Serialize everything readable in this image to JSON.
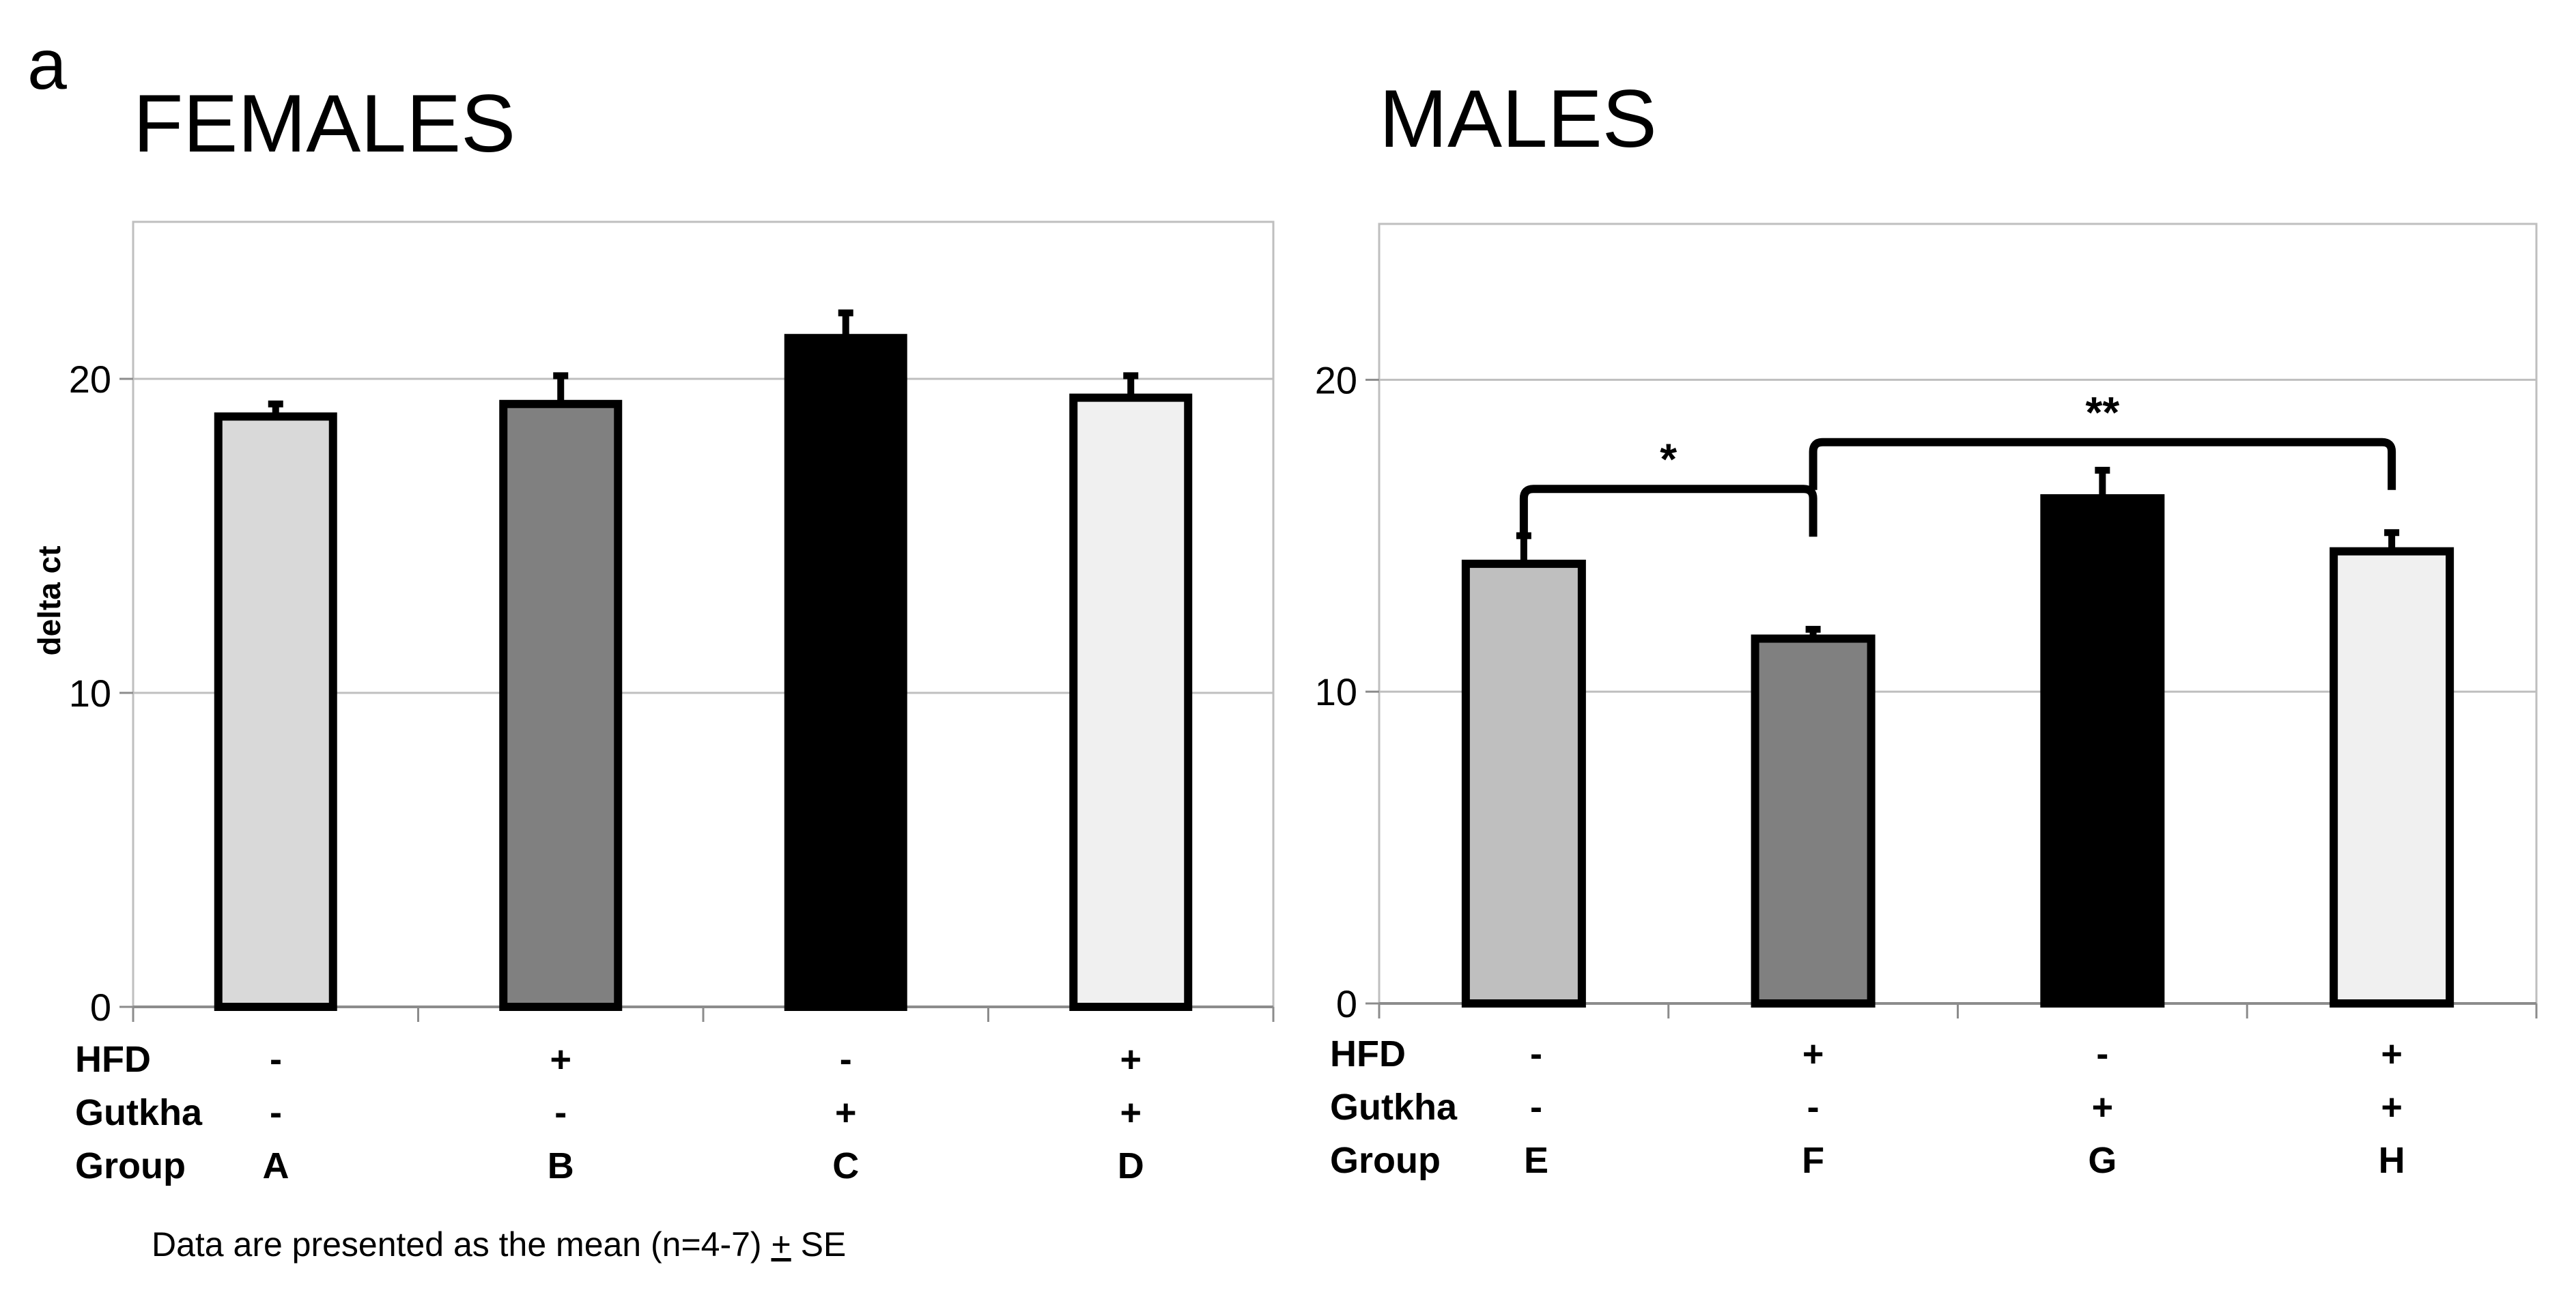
{
  "figure": {
    "panel_label": "a",
    "footnote": {
      "prefix": "Data are presented as the mean (n=4-7) ",
      "pm": "+",
      "suffix": " SE"
    }
  },
  "chart_data": [
    {
      "type": "bar",
      "title": "FEMALES",
      "ylabel": "delta ct",
      "xlabel": "",
      "ylim": [
        0,
        25
      ],
      "yticks": [
        0,
        10,
        20
      ],
      "grid": true,
      "categories": [
        "A",
        "B",
        "C",
        "D"
      ],
      "values": [
        18.8,
        19.2,
        21.3,
        19.4
      ],
      "errors": [
        0.4,
        0.9,
        0.8,
        0.7
      ],
      "colors": [
        "#d9d9d9",
        "#808080",
        "#000000",
        "#f0f0f0"
      ],
      "row_labels": [
        "HFD",
        "Gutkha",
        "Group"
      ],
      "rows": [
        [
          "-",
          "+",
          "-",
          "+"
        ],
        [
          "-",
          "-",
          "+",
          "+"
        ],
        [
          "A",
          "B",
          "C",
          "D"
        ]
      ],
      "significance": []
    },
    {
      "type": "bar",
      "title": "MALES",
      "ylabel": "",
      "xlabel": "",
      "ylim": [
        0,
        25
      ],
      "yticks": [
        0,
        10,
        20
      ],
      "grid": true,
      "categories": [
        "E",
        "F",
        "G",
        "H"
      ],
      "values": [
        14.1,
        11.7,
        16.2,
        14.5
      ],
      "errors": [
        0.9,
        0.3,
        0.9,
        0.6
      ],
      "colors": [
        "#bfbfbf",
        "#808080",
        "#000000",
        "#f0f0f0"
      ],
      "row_labels": [
        "HFD",
        "Gutkha",
        "Group"
      ],
      "rows": [
        [
          "-",
          "+",
          "-",
          "+"
        ],
        [
          "-",
          "-",
          "+",
          "+"
        ],
        [
          "E",
          "F",
          "G",
          "H"
        ]
      ],
      "significance": [
        {
          "from": 0,
          "to": 1,
          "label": "*",
          "level": 16.5
        },
        {
          "from": 1,
          "to": 3,
          "label": "**",
          "level": 18.0
        }
      ]
    }
  ]
}
